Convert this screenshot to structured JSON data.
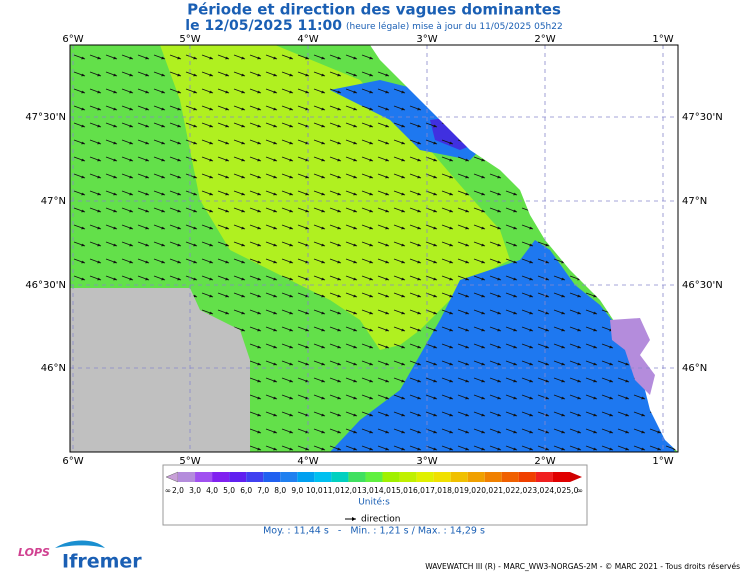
{
  "header": {
    "title": "Période et direction des vagues dominantes",
    "date": "le 12/05/2025 11:00",
    "update": "(heure légale) mise à jour du 11/05/2025 05h22"
  },
  "map": {
    "lon_labels": [
      "6°W",
      "5°W",
      "4°W",
      "3°W",
      "2°W",
      "1°W"
    ],
    "lat_labels": [
      "47°30'N",
      "47°N",
      "46°30'N",
      "46°N"
    ]
  },
  "colorbar": {
    "labels": [
      "∞",
      "2,0",
      "3,0",
      "4,0",
      "5,0",
      "6,0",
      "7,0",
      "8,0",
      "9,0",
      "10,0",
      "11,0",
      "12,0",
      "13,0",
      "14,0",
      "15,0",
      "16,0",
      "17,0",
      "18,0",
      "19,0",
      "20,0",
      "21,0",
      "22,0",
      "23,0",
      "24,0",
      "25,0",
      "∞"
    ],
    "colors": [
      "#c8a0d8",
      "#b48cdc",
      "#a050f0",
      "#8020f0",
      "#6020f0",
      "#4040f0",
      "#2060f0",
      "#2080f0",
      "#00a0f0",
      "#00c0f0",
      "#00d0c0",
      "#40e060",
      "#60f040",
      "#a0f000",
      "#c0f000",
      "#e0f000",
      "#f0e000",
      "#f0c000",
      "#f0a000",
      "#f08000",
      "#f06000",
      "#f04000",
      "#f02020",
      "#e00000",
      "#d00000"
    ],
    "unit": "Unité:s",
    "direction": "direction",
    "stats": "Moy. : 11,44 s   -   Min. : 1,21 s / Max. : 14,29 s"
  },
  "footer": {
    "credits": "WAVEWATCH III (R) - MARC_WW3-NORGAS-2M - © MARC 2021 - Tous droits réservés",
    "logo_lops": "LOPS",
    "logo_ifremer": "Ifremer"
  }
}
